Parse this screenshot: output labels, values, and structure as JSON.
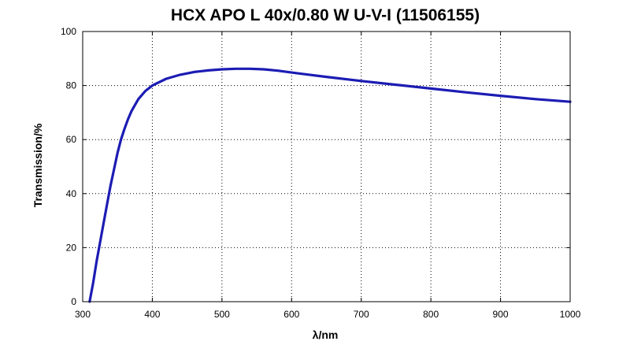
{
  "chart_data": {
    "type": "line",
    "title": "HCX APO L 40x/0.80 W U-V-I (11506155)",
    "xlabel": "λ/nm",
    "ylabel": "Transmission/%",
    "xlim": [
      300,
      1000
    ],
    "ylim": [
      0,
      100
    ],
    "xticks": [
      300,
      400,
      500,
      600,
      700,
      800,
      900,
      1000
    ],
    "yticks": [
      0,
      20,
      40,
      60,
      80,
      100
    ],
    "grid": true,
    "grid_style": "dotted",
    "series_color": "#1c1cb4",
    "series": [
      {
        "x": [
          310,
          315,
          320,
          325,
          330,
          335,
          340,
          345,
          350,
          355,
          360,
          365,
          370,
          380,
          390,
          400,
          420,
          440,
          460,
          480,
          500,
          520,
          540,
          560,
          580,
          600,
          650,
          700,
          750,
          800,
          850,
          900,
          950,
          1000
        ],
        "y": [
          0,
          7,
          15,
          22,
          29,
          36,
          43,
          49,
          55,
          60,
          64,
          67.5,
          70.5,
          75,
          78,
          80,
          82.5,
          84,
          85,
          85.6,
          86,
          86.2,
          86.2,
          86,
          85.5,
          84.8,
          83.2,
          81.7,
          80.3,
          78.9,
          77.5,
          76.2,
          75,
          74
        ]
      }
    ]
  }
}
